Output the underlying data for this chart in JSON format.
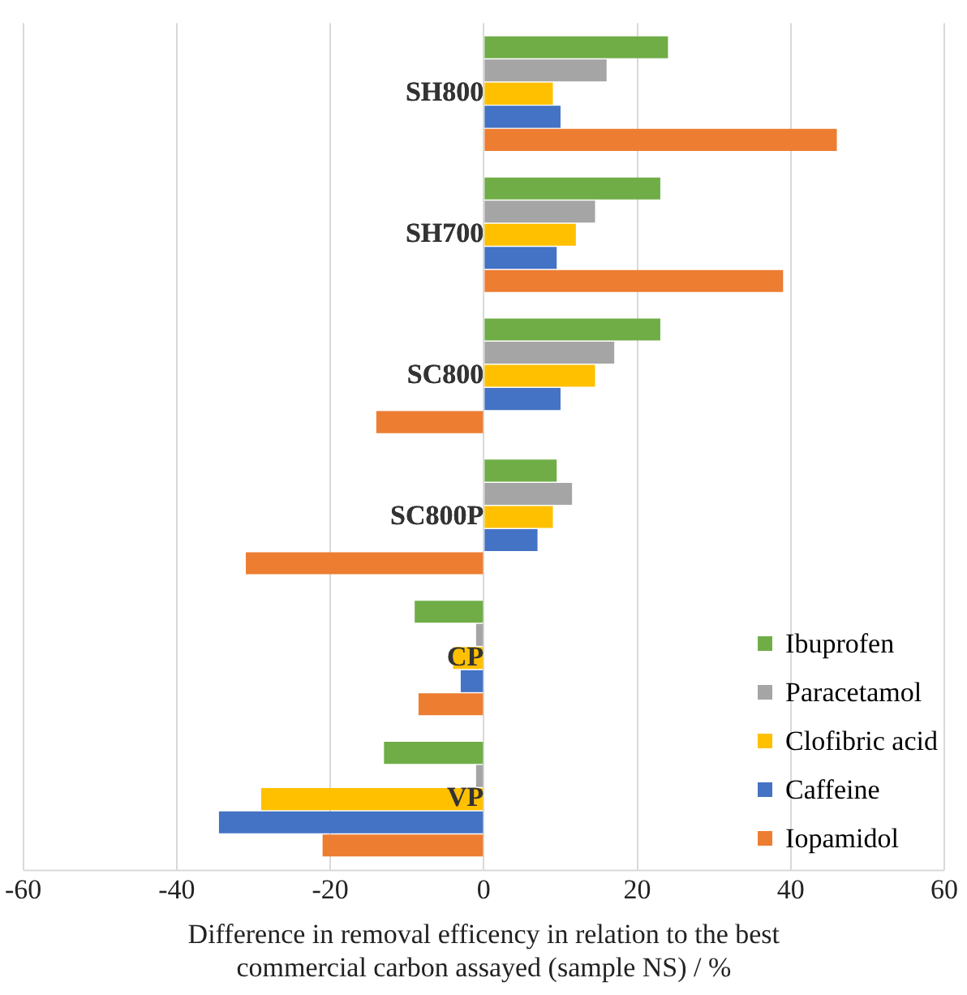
{
  "chart_data": {
    "type": "bar",
    "orientation": "horizontal",
    "categories": [
      "SH800",
      "SH700",
      "SC800",
      "SC800P",
      "CP",
      "VP"
    ],
    "xlabel": "Difference in removal efficency in relation to the best\ncommercial carbon assayed (sample NS) / %",
    "xlim": [
      -60,
      60
    ],
    "xticks": [
      -60,
      -40,
      -20,
      0,
      20,
      40,
      60
    ],
    "grid": "x",
    "legend": "bottom right",
    "series": [
      {
        "name": "Ibuprofen",
        "color": "#70ad47",
        "values": [
          24,
          23,
          23,
          9.5,
          -9,
          -13
        ]
      },
      {
        "name": "Paracetamol",
        "color": "#a5a5a5",
        "values": [
          16,
          14.5,
          17,
          11.5,
          -1,
          -1
        ]
      },
      {
        "name": "Clofibric acid",
        "color": "#ffc000",
        "values": [
          9,
          12,
          14.5,
          9,
          -4,
          -29
        ]
      },
      {
        "name": "Caffeine",
        "color": "#4472c4",
        "values": [
          10,
          9.5,
          10,
          7,
          -3,
          -34.5
        ]
      },
      {
        "name": "Iopamidol",
        "color": "#ed7d31",
        "values": [
          46,
          39,
          -14,
          -31,
          -8.5,
          -21
        ]
      }
    ]
  }
}
